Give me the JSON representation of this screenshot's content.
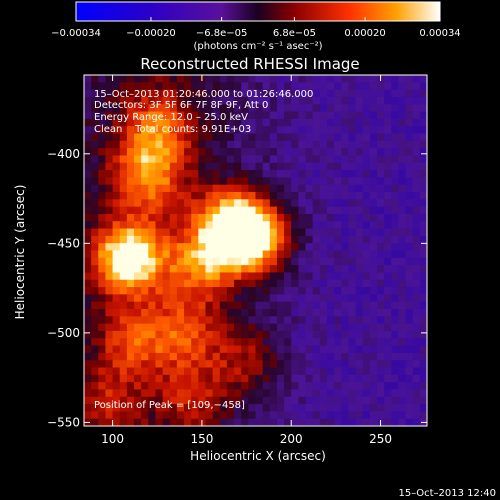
{
  "chart_data": {
    "type": "heatmap",
    "title": "Reconstructed RHESSI Image",
    "xlabel": "Heliocentric X (arcsec)",
    "ylabel": "Heliocentric Y (arcsec)",
    "xlim": [
      84,
      276
    ],
    "ylim": [
      -552,
      -356
    ],
    "x_ticks": [
      100,
      150,
      200,
      250
    ],
    "y_ticks": [
      -400,
      -450,
      -500,
      -550
    ],
    "x_tick_labels": [
      "100",
      "150",
      "200",
      "250"
    ],
    "y_tick_labels": [
      "−400",
      "−450",
      "−500",
      "−550"
    ],
    "colorbar": {
      "range": [
        -0.00034,
        0.00034
      ],
      "ticks": [
        -0.00034,
        -0.0002,
        -6.8e-05,
        6.8e-05,
        0.0002,
        0.00034
      ],
      "tick_labels": [
        "−0.00034",
        "−0.00020",
        "−6.8e−05",
        "6.8e−05",
        "0.00020",
        "0.00034"
      ],
      "unit_label": "(photons cm⁻² s⁻¹ asec⁻²)"
    },
    "annotations": [
      "15–Oct–2013 01:20:46.000 to 01:26:46.000",
      "Detectors: 3F 5F 6F 7F 8F 9F, Att 0",
      "Energy Range: 12.0 – 25.0 keV",
      "Clean    Total counts: 9.91E+03",
      "Position of Peak = [109,−458]"
    ],
    "sources": [
      {
        "x": 109,
        "y": -458,
        "intensity": 1.0
      },
      {
        "x": 167,
        "y": -440,
        "intensity": 0.95
      },
      {
        "x": 180,
        "y": -448,
        "intensity": 0.8
      },
      {
        "x": 120,
        "y": -412,
        "intensity": 0.6
      },
      {
        "x": 125,
        "y": -385,
        "intensity": 0.5
      },
      {
        "x": 150,
        "y": -462,
        "intensity": 0.55
      },
      {
        "x": 140,
        "y": -500,
        "intensity": 0.45
      },
      {
        "x": 110,
        "y": -505,
        "intensity": 0.4
      },
      {
        "x": 175,
        "y": -515,
        "intensity": 0.35
      },
      {
        "x": 145,
        "y": -535,
        "intensity": 0.3
      },
      {
        "x": 95,
        "y": -540,
        "intensity": 0.32
      }
    ]
  },
  "footer": {
    "timestamp": "15–Oct–2013 12:40"
  }
}
